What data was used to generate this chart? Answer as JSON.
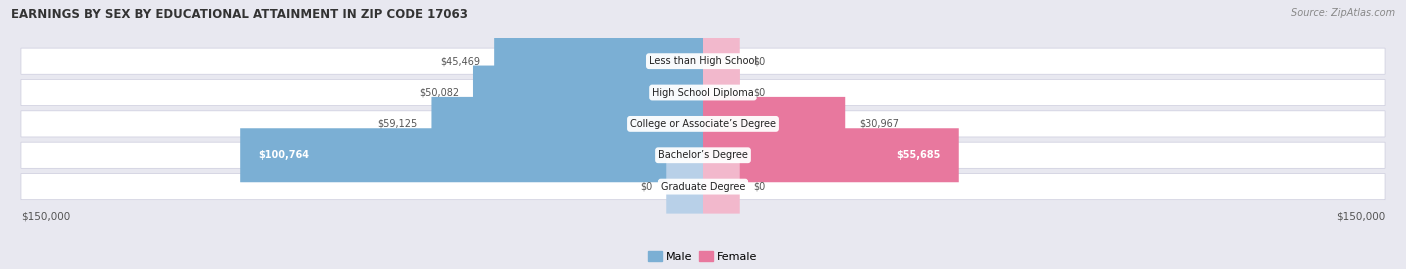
{
  "title": "EARNINGS BY SEX BY EDUCATIONAL ATTAINMENT IN ZIP CODE 17063",
  "source": "Source: ZipAtlas.com",
  "categories": [
    "Less than High School",
    "High School Diploma",
    "College or Associate’s Degree",
    "Bachelor’s Degree",
    "Graduate Degree"
  ],
  "male_values": [
    45469,
    50082,
    59125,
    100764,
    0
  ],
  "female_values": [
    0,
    0,
    30967,
    55685,
    0
  ],
  "male_color": "#7bafd4",
  "female_color": "#e8789e",
  "male_color_light": "#b8d0e8",
  "female_color_light": "#f2b8cc",
  "axis_max": 150000,
  "stub_val": 8000,
  "bg_color": "#e8e8f0",
  "row_bg_color": "#f2f2f8",
  "title_fontsize": 8.5,
  "source_fontsize": 7.0,
  "label_fontsize": 7.5,
  "value_fontsize": 7.0,
  "cat_fontsize": 7.0,
  "legend_fontsize": 8.0
}
